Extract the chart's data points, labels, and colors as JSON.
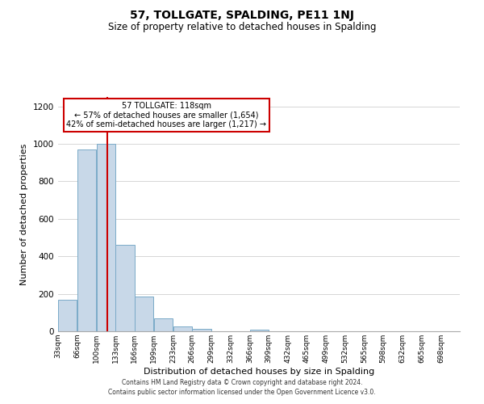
{
  "title": "57, TOLLGATE, SPALDING, PE11 1NJ",
  "subtitle": "Size of property relative to detached houses in Spalding",
  "xlabel": "Distribution of detached houses by size in Spalding",
  "ylabel": "Number of detached properties",
  "bar_color": "#c8d8e8",
  "bar_edge_color": "#7aaac8",
  "background_color": "#ffffff",
  "grid_color": "#d0d0d0",
  "annotation_box_color": "#cc0000",
  "vline_color": "#cc0000",
  "vline_x": 118,
  "annotation_line1": "57 TOLLGATE: 118sqm",
  "annotation_line2": "← 57% of detached houses are smaller (1,654)",
  "annotation_line3": "42% of semi-detached houses are larger (1,217) →",
  "bins": [
    33,
    66,
    100,
    133,
    166,
    199,
    233,
    266,
    299,
    332,
    366,
    399,
    432,
    465,
    499,
    532,
    565,
    598,
    632,
    665,
    698
  ],
  "counts": [
    170,
    970,
    1000,
    460,
    185,
    70,
    25,
    15,
    0,
    0,
    10,
    0,
    0,
    0,
    0,
    0,
    0,
    0,
    0,
    0
  ],
  "ylim": [
    0,
    1250
  ],
  "yticks": [
    0,
    200,
    400,
    600,
    800,
    1000,
    1200
  ],
  "footnote1": "Contains HM Land Registry data © Crown copyright and database right 2024.",
  "footnote2": "Contains public sector information licensed under the Open Government Licence v3.0."
}
